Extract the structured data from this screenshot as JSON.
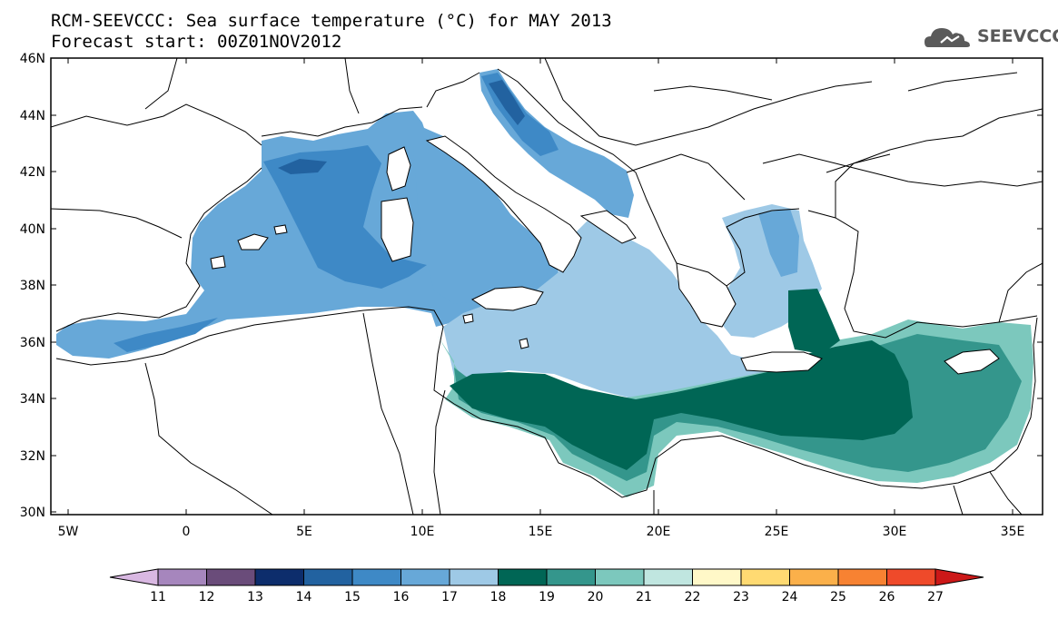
{
  "header": {
    "title_line1": "RCM-SEEVCCC: Sea surface temperature (°C) for MAY 2013",
    "title_line2": "Forecast start: 00Z01NOV2012",
    "logo_text": "SEEVCCC"
  },
  "map": {
    "lat_labels": [
      "46N",
      "44N",
      "42N",
      "40N",
      "38N",
      "36N",
      "34N",
      "32N",
      "30N"
    ],
    "lon_labels": [
      "5W",
      "0",
      "5E",
      "10E",
      "15E",
      "20E",
      "25E",
      "30E",
      "35E"
    ]
  },
  "colorbar": {
    "labels": [
      "11",
      "12",
      "13",
      "14",
      "15",
      "16",
      "17",
      "18",
      "19",
      "20",
      "21",
      "22",
      "23",
      "24",
      "25",
      "26",
      "27"
    ],
    "colors": [
      "#d9b8e2",
      "#a686bd",
      "#6a4c7a",
      "#0d2d6c",
      "#2262a0",
      "#3e89c6",
      "#67a8d8",
      "#9ec9e6",
      "#006655",
      "#34968c",
      "#7cc8bd",
      "#c0e6e0",
      "#fff8c8",
      "#ffda72",
      "#fbb04a",
      "#f78232",
      "#ef4a2a",
      "#cc1818"
    ]
  }
}
